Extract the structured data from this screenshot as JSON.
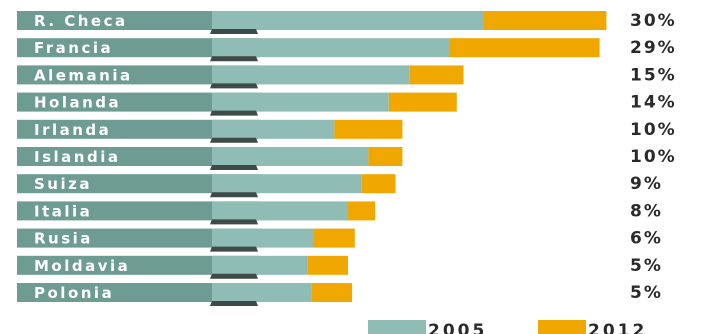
{
  "chart_data": {
    "type": "bar",
    "orientation": "horizontal",
    "stacked": true,
    "categories": [
      "R. Checa",
      "Francia",
      "Alemania",
      "Holanda",
      "Irlanda",
      "Islandia",
      "Suiza",
      "Italia",
      "Rusia",
      "Moldavia",
      "Polonia"
    ],
    "series": [
      {
        "name": "2005",
        "color": "#8fbcb4",
        "values": [
          20,
          17.5,
          14.5,
          13,
          9,
          11.5,
          11,
          10,
          7.5,
          7,
          7.3
        ]
      },
      {
        "name": "2012",
        "color": "#f0a800",
        "values": [
          9,
          11,
          4,
          5,
          5,
          2.5,
          2.5,
          2,
          3,
          3,
          3
        ]
      }
    ],
    "data_labels": [
      "30%",
      "29%",
      "15%",
      "14%",
      "10%",
      "10%",
      "9%",
      "8%",
      "6%",
      "5%",
      "5%"
    ],
    "legend": {
      "position": "bottom-right",
      "entries": [
        "2005",
        "2012"
      ]
    },
    "colors": {
      "label_box": "#6e9b92",
      "label_shadow": "#3d4a47",
      "label_text": "#ffffff"
    },
    "title": "",
    "xlabel": "",
    "ylabel": "",
    "grid": false
  }
}
